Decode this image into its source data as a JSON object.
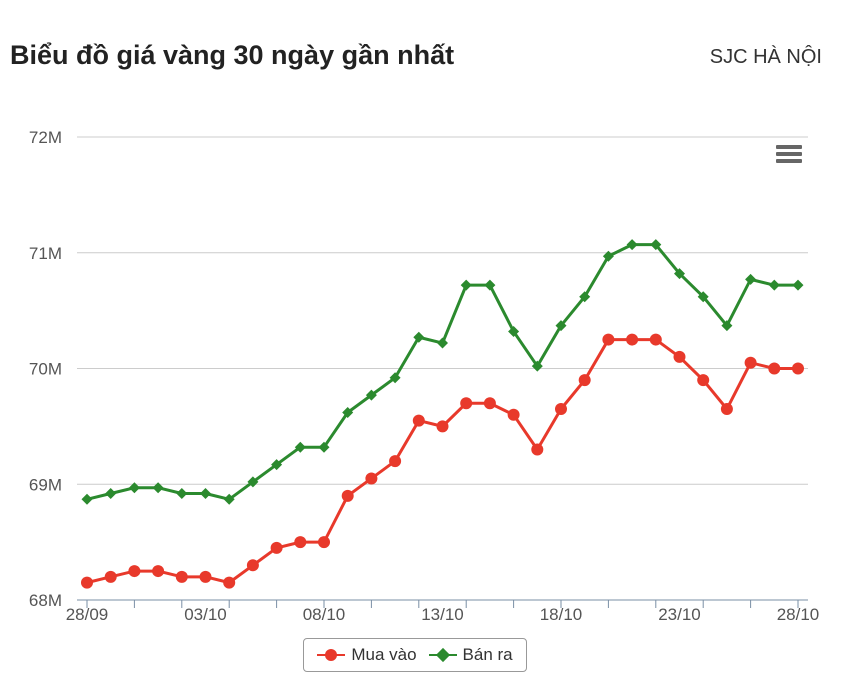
{
  "header": {
    "title": "Biểu đồ giá vàng 30 ngày gần nhất",
    "location": "SJC HÀ NỘI"
  },
  "menu": {
    "icon": "hamburger-menu-icon"
  },
  "colors": {
    "buy": "#e8392b",
    "sell": "#2b8a2e",
    "grid": "#cccccc",
    "axis": "#7a8fa6"
  },
  "chart_data": {
    "type": "line",
    "title": "Biểu đồ giá vàng 30 ngày gần nhất",
    "xlabel": "",
    "ylabel": "",
    "ylim": [
      68,
      72
    ],
    "yticks": [
      68,
      69,
      70,
      71,
      72
    ],
    "ytick_labels": [
      "68M",
      "69M",
      "70M",
      "71M",
      "72M"
    ],
    "xtick_labels": [
      {
        "index": 0,
        "label": "28/09"
      },
      {
        "index": 5,
        "label": "03/10"
      },
      {
        "index": 10,
        "label": "08/10"
      },
      {
        "index": 15,
        "label": "13/10"
      },
      {
        "index": 20,
        "label": "18/10"
      },
      {
        "index": 25,
        "label": "23/10"
      },
      {
        "index": 30,
        "label": "28/10"
      }
    ],
    "grid": true,
    "legend": "bottom-center",
    "series": [
      {
        "name": "Mua vào",
        "marker": "circle",
        "values": [
          68.15,
          68.2,
          68.25,
          68.25,
          68.2,
          68.2,
          68.15,
          68.3,
          68.45,
          68.5,
          68.5,
          68.9,
          69.05,
          69.2,
          69.55,
          69.5,
          69.7,
          69.7,
          69.6,
          69.3,
          69.65,
          69.9,
          70.25,
          70.25,
          70.25,
          70.1,
          69.9,
          69.65,
          70.05,
          70.0,
          70.0
        ]
      },
      {
        "name": "Bán ra",
        "marker": "diamond",
        "values": [
          68.87,
          68.92,
          68.97,
          68.97,
          68.92,
          68.92,
          68.87,
          69.02,
          69.17,
          69.32,
          69.32,
          69.62,
          69.77,
          69.92,
          70.27,
          70.22,
          70.72,
          70.72,
          70.32,
          70.02,
          70.37,
          70.62,
          70.97,
          71.07,
          71.07,
          70.82,
          70.62,
          70.37,
          70.77,
          70.72,
          70.72
        ]
      }
    ]
  }
}
